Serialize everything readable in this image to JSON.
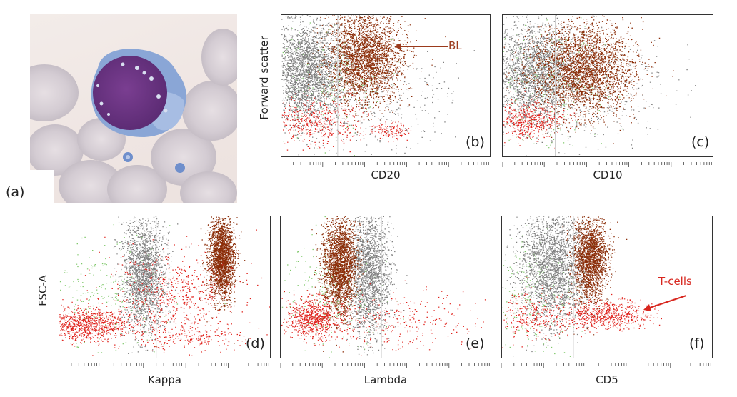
{
  "figure": {
    "micrograph_label": "(a)",
    "plots": [
      {
        "id": "b",
        "label": "(b)",
        "xlabel": "CD20",
        "ylabel": "Forward scatter"
      },
      {
        "id": "c",
        "label": "(c)",
        "xlabel": "CD10",
        "ylabel": ""
      },
      {
        "id": "d",
        "label": "(d)",
        "xlabel": "Kappa",
        "ylabel": "FSC-A"
      },
      {
        "id": "e",
        "label": "(e)",
        "xlabel": "Lambda",
        "ylabel": ""
      },
      {
        "id": "f",
        "label": "(f)",
        "xlabel": "CD5",
        "ylabel": ""
      }
    ],
    "annotations": {
      "bl": "BL",
      "tcells": "T-cells"
    }
  },
  "colors": {
    "gray": "#7f7f7f",
    "brown": "#8b2d08",
    "red": "#e0201a",
    "green": "#7fc86a",
    "annot_brown": "#9b3a1c",
    "annot_red": "#d8261e"
  }
}
